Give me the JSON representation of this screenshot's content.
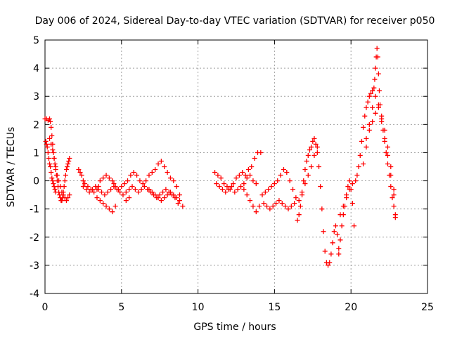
{
  "chart_data": {
    "type": "scatter",
    "title": "Day 006 of 2024, Sidereal Day-to-day VTEC variation (SDTVAR) for receiver p050",
    "xlabel": "GPS time / hours",
    "ylabel": "SDTVAR / TECUs",
    "xlim": [
      0,
      25
    ],
    "ylim": [
      -4,
      5
    ],
    "xticks": [
      0,
      5,
      10,
      15,
      20,
      25
    ],
    "yticks": [
      -4,
      -3,
      -2,
      -1,
      0,
      1,
      2,
      3,
      4,
      5
    ],
    "grid": true,
    "marker": "plus",
    "color": "#ff0000",
    "series": [
      {
        "name": "SDTVAR",
        "x": [
          0.0,
          0.1,
          0.2,
          0.3,
          0.35,
          0.4,
          0.45,
          0.5,
          0.55,
          0.6,
          0.65,
          0.7,
          0.75,
          0.8,
          0.85,
          0.9,
          0.95,
          1.0,
          1.05,
          1.1,
          1.15,
          1.2,
          1.25,
          1.3,
          1.35,
          1.4,
          1.45,
          1.5,
          1.55,
          1.6,
          0.05,
          0.1,
          0.15,
          0.2,
          0.25,
          0.3,
          0.35,
          0.4,
          0.45,
          0.5,
          0.55,
          0.6,
          0.65,
          0.7,
          0.3,
          0.4,
          0.5,
          0.6,
          0.7,
          0.8,
          0.9,
          1.0,
          1.1,
          1.2,
          1.3,
          1.4,
          1.5,
          1.6,
          2.2,
          2.3,
          2.4,
          2.5,
          2.6,
          2.8,
          3.0,
          3.2,
          3.4,
          3.5,
          3.6,
          3.8,
          4.0,
          4.2,
          4.4,
          4.5,
          4.6,
          4.8,
          5.0,
          5.2,
          5.4,
          5.6,
          5.8,
          6.0,
          6.2,
          6.4,
          6.6,
          6.8,
          7.0,
          7.2,
          7.4,
          7.6,
          7.8,
          8.0,
          8.2,
          8.4,
          8.6,
          8.8,
          9.0,
          2.5,
          2.7,
          2.9,
          3.1,
          3.3,
          3.5,
          3.7,
          3.9,
          4.1,
          4.3,
          4.5,
          4.7,
          4.9,
          5.1,
          5.3,
          5.5,
          5.7,
          5.9,
          6.1,
          6.3,
          6.5,
          6.7,
          6.9,
          7.1,
          7.3,
          7.5,
          7.7,
          7.9,
          8.1,
          8.3,
          8.5,
          8.7,
          3.4,
          3.6,
          3.8,
          4.0,
          4.2,
          4.4,
          4.6,
          5.3,
          5.5,
          6.8,
          7.0,
          7.2,
          7.4,
          7.6,
          7.8,
          8.0,
          8.2,
          8.4,
          8.6,
          8.8,
          11.1,
          11.3,
          11.5,
          11.7,
          11.9,
          12.1,
          12.3,
          12.5,
          12.7,
          12.9,
          13.1,
          13.3,
          13.5,
          13.7,
          13.9,
          14.1,
          11.2,
          11.4,
          11.6,
          11.8,
          12.0,
          12.2,
          12.4,
          12.6,
          12.8,
          13.0,
          13.2,
          13.4,
          13.6,
          13.8,
          13.0,
          13.2,
          13.4,
          13.6,
          13.8,
          14.0,
          14.2,
          14.4,
          14.6,
          14.8,
          15.0,
          15.2,
          15.4,
          15.6,
          15.8,
          16.0,
          16.2,
          16.4,
          14.3,
          14.5,
          14.7,
          14.9,
          15.1,
          15.3,
          15.5,
          15.7,
          15.9,
          16.1,
          16.3,
          16.5,
          16.6,
          16.7,
          16.8,
          16.9,
          17.0,
          17.1,
          17.2,
          17.3,
          17.4,
          17.5,
          17.6,
          17.7,
          17.8,
          17.9,
          18.0,
          18.1,
          18.2,
          18.3,
          18.4,
          18.5,
          18.6,
          18.7,
          18.8,
          18.9,
          19.0,
          19.1,
          19.2,
          16.6,
          16.8,
          17.0,
          17.2,
          17.4,
          17.6,
          17.8,
          19.2,
          19.3,
          19.4,
          19.5,
          19.6,
          19.7,
          19.8,
          19.9,
          20.0,
          20.1,
          20.2,
          19.3,
          19.5,
          19.7,
          19.9,
          20.1,
          20.3,
          20.4,
          20.5,
          20.6,
          20.7,
          20.8,
          20.9,
          21.0,
          21.1,
          21.2,
          21.3,
          21.4,
          21.5,
          21.55,
          21.6,
          21.65,
          21.7,
          21.75,
          21.8,
          21.85,
          21.9,
          22.0,
          22.1,
          22.2,
          22.3,
          22.4,
          22.5,
          22.6,
          22.7,
          22.8,
          22.9,
          21.0,
          21.2,
          21.4,
          21.6,
          21.8,
          22.0,
          22.2,
          22.4,
          22.6,
          22.8,
          20.8,
          21.0,
          21.2,
          21.4,
          21.6,
          21.8,
          22.0,
          22.2,
          22.4,
          22.6,
          22.8,
          22.9
        ],
        "y": [
          2.2,
          2.2,
          2.15,
          2.2,
          2.1,
          1.9,
          1.6,
          1.3,
          1.0,
          0.8,
          0.6,
          0.4,
          0.2,
          0.0,
          -0.2,
          -0.4,
          -0.5,
          -0.6,
          -0.7,
          -0.7,
          -0.6,
          -0.4,
          -0.2,
          0.0,
          0.2,
          0.4,
          0.5,
          0.6,
          0.7,
          0.8,
          1.4,
          1.3,
          1.2,
          1.0,
          0.8,
          0.6,
          0.5,
          0.3,
          0.1,
          0.0,
          -0.1,
          -0.2,
          -0.3,
          -0.4,
          1.5,
          1.3,
          1.1,
          0.8,
          0.5,
          0.2,
          0.0,
          -0.2,
          -0.4,
          -0.5,
          -0.6,
          -0.7,
          -0.6,
          -0.5,
          0.4,
          0.3,
          0.2,
          0.0,
          -0.1,
          -0.2,
          -0.3,
          -0.4,
          -0.3,
          -0.2,
          0.0,
          0.1,
          0.2,
          0.1,
          0.0,
          -0.1,
          -0.2,
          -0.3,
          -0.2,
          -0.1,
          0.0,
          0.2,
          0.3,
          0.2,
          0.0,
          -0.1,
          0.0,
          0.2,
          0.3,
          0.4,
          0.6,
          0.7,
          0.5,
          0.3,
          0.1,
          0.0,
          -0.2,
          -0.5,
          -0.9,
          -0.2,
          -0.3,
          -0.4,
          -0.3,
          -0.2,
          -0.3,
          -0.4,
          -0.5,
          -0.4,
          -0.3,
          -0.2,
          -0.3,
          -0.4,
          -0.5,
          -0.4,
          -0.3,
          -0.2,
          -0.3,
          -0.4,
          -0.3,
          -0.2,
          -0.3,
          -0.4,
          -0.5,
          -0.6,
          -0.5,
          -0.4,
          -0.3,
          -0.4,
          -0.5,
          -0.6,
          -0.8,
          -0.6,
          -0.7,
          -0.8,
          -0.9,
          -1.0,
          -1.1,
          -0.9,
          -0.7,
          -0.6,
          -0.3,
          -0.4,
          -0.5,
          -0.6,
          -0.7,
          -0.6,
          -0.5,
          -0.4,
          -0.5,
          -0.6,
          -0.7,
          0.3,
          0.2,
          0.1,
          -0.1,
          -0.2,
          -0.3,
          -0.1,
          0.1,
          0.2,
          0.3,
          0.2,
          0.4,
          0.5,
          0.8,
          1.0,
          1.0,
          -0.1,
          -0.2,
          -0.3,
          -0.4,
          -0.3,
          -0.2,
          -0.4,
          -0.3,
          -0.2,
          -0.1,
          0.1,
          0.2,
          0.0,
          -0.1,
          -0.3,
          -0.5,
          -0.7,
          -0.9,
          -1.1,
          -0.9,
          -0.5,
          -0.4,
          -0.3,
          -0.2,
          -0.1,
          0.0,
          0.2,
          0.4,
          0.3,
          0.0,
          -0.3,
          -0.6,
          -0.8,
          -0.9,
          -1.0,
          -0.9,
          -0.8,
          -0.7,
          -0.8,
          -0.9,
          -1.0,
          -0.9,
          -0.8,
          -1.4,
          -1.2,
          -0.9,
          -0.5,
          0.0,
          0.4,
          0.7,
          0.9,
          1.1,
          1.2,
          1.4,
          1.5,
          1.3,
          1.0,
          0.5,
          -0.2,
          -1.0,
          -1.8,
          -2.5,
          -2.9,
          -3.0,
          -2.9,
          -2.6,
          -2.2,
          -1.8,
          -1.6,
          -1.9,
          -2.4,
          -0.7,
          -0.4,
          -0.1,
          0.2,
          0.5,
          0.9,
          1.2,
          -2.6,
          -2.1,
          -1.6,
          -1.2,
          -0.9,
          -0.5,
          -0.2,
          0.0,
          -0.3,
          -0.8,
          -1.6,
          -1.2,
          -0.9,
          -0.6,
          -0.3,
          -0.1,
          0.0,
          0.2,
          0.5,
          0.9,
          1.4,
          1.9,
          2.3,
          2.6,
          2.8,
          3.0,
          3.1,
          3.2,
          3.3,
          3.6,
          4.0,
          4.4,
          4.7,
          4.4,
          3.8,
          3.2,
          2.7,
          2.2,
          1.8,
          1.4,
          1.0,
          0.6,
          0.2,
          -0.2,
          -0.6,
          -0.9,
          -1.2,
          1.5,
          1.8,
          2.1,
          2.4,
          2.7,
          2.3,
          1.8,
          1.2,
          0.5,
          -0.3,
          0.6,
          1.2,
          2.0,
          2.6,
          3.0,
          2.6,
          2.1,
          1.5,
          0.9,
          0.2,
          -0.5,
          -1.3
        ]
      }
    ]
  }
}
